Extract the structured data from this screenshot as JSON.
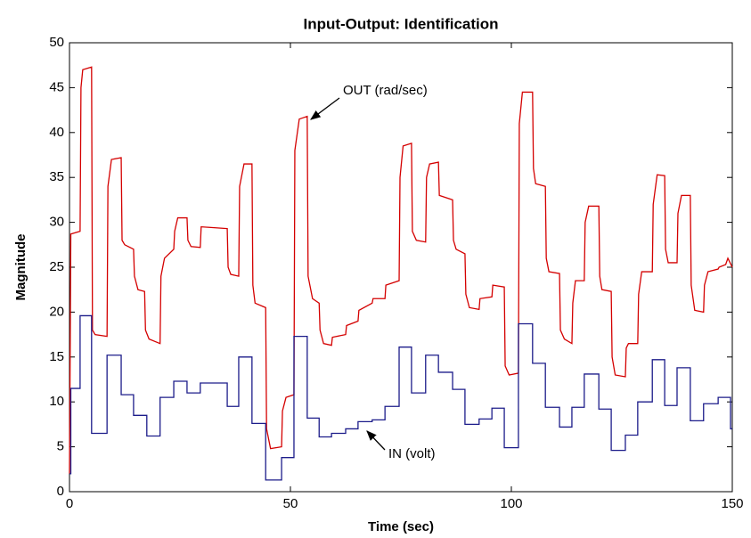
{
  "chart_data": {
    "type": "line",
    "title": "Input-Output: Identification",
    "xlabel": "Time (sec)",
    "ylabel": "Magnitude",
    "xlim": [
      0,
      150
    ],
    "xticks": [
      0,
      50,
      100,
      150
    ],
    "ylim": [
      0,
      50
    ],
    "yticks": [
      0,
      5,
      10,
      15,
      20,
      25,
      30,
      35,
      40,
      45,
      50
    ],
    "grid": false,
    "series": [
      {
        "name": "OUT (rad/sec)",
        "color": "#d40000",
        "step": false,
        "x": [
          0,
          0.3,
          2.4,
          2.6,
          3,
          5,
          5.2,
          5.8,
          8.5,
          8.7,
          9.5,
          11.7,
          11.9,
          12.5,
          14.5,
          14.7,
          15.5,
          17,
          17.2,
          18,
          20.5,
          20.7,
          21.5,
          23.6,
          23.8,
          24.5,
          26.6,
          26.8,
          27.5,
          29.6,
          29.8,
          35.7,
          35.9,
          36.5,
          38.3,
          38.5,
          39.5,
          41.3,
          41.5,
          42,
          44.4,
          44.6,
          45.5,
          48,
          48.2,
          49,
          50.8,
          51,
          52,
          53.8,
          54,
          55,
          56.5,
          56.7,
          57.5,
          59.3,
          59.5,
          62.5,
          62.7,
          65.3,
          65.5,
          68.5,
          68.7,
          71.4,
          71.6,
          74.6,
          74.8,
          75.5,
          77.4,
          77.6,
          78.5,
          80.6,
          80.8,
          81.5,
          83.5,
          83.7,
          86.7,
          86.9,
          87.5,
          89.5,
          89.7,
          90.5,
          92.7,
          92.9,
          95.6,
          95.8,
          98.4,
          98.6,
          99.5,
          101.6,
          101.8,
          102.5,
          104.8,
          105,
          105.5,
          107.7,
          107.9,
          108.5,
          110.9,
          111.1,
          112,
          113.7,
          113.9,
          114.5,
          116.5,
          116.7,
          117.5,
          119.8,
          120,
          120.5,
          122.6,
          122.8,
          123.5,
          125.8,
          126,
          126.5,
          128.6,
          128.8,
          129.5,
          131.9,
          132.1,
          133,
          134.7,
          134.9,
          135.5,
          137.5,
          137.7,
          138.5,
          140.5,
          140.7,
          141.5,
          143.5,
          143.7,
          144.5,
          146.8,
          147,
          148.5,
          149,
          150
        ],
        "values": [
          2,
          28.7,
          29,
          45,
          47,
          47.3,
          18,
          17.5,
          17.3,
          34,
          37,
          37.2,
          28,
          27.5,
          27,
          24,
          22.5,
          22.3,
          18,
          17,
          16.5,
          24,
          26,
          27,
          29,
          30.5,
          30.5,
          28,
          27.3,
          27.2,
          29.5,
          29.3,
          25,
          24.2,
          24,
          34,
          36.5,
          36.5,
          23,
          21,
          20.5,
          7,
          4.8,
          5,
          9,
          10.5,
          10.8,
          38,
          41.5,
          41.8,
          24,
          21.5,
          21,
          18,
          16.5,
          16.3,
          17.2,
          17.5,
          18.5,
          19,
          20.2,
          21,
          21.5,
          21.5,
          23,
          23.5,
          35,
          38.5,
          38.8,
          29,
          28,
          27.8,
          35,
          36.5,
          36.7,
          33,
          32.5,
          28,
          27,
          26.5,
          22,
          20.5,
          20.3,
          21.5,
          21.7,
          23,
          22.8,
          14,
          13,
          13.2,
          41,
          44.5,
          44.5,
          36,
          34.3,
          34,
          26,
          24.5,
          24.3,
          18,
          17,
          16.5,
          21,
          23.5,
          23.5,
          30,
          31.8,
          31.8,
          24,
          22.5,
          22.3,
          15,
          13,
          12.8,
          16,
          16.5,
          16.5,
          22,
          24.5,
          24.5,
          32,
          35.3,
          35.2,
          27,
          25.5,
          25.5,
          31,
          33,
          33,
          23,
          20.2,
          20,
          23,
          24.5,
          24.8,
          25,
          25.3,
          26,
          25
        ]
      },
      {
        "name": "IN (volt)",
        "color": "#1c1c8a",
        "step": true,
        "x": [
          0,
          0.3,
          2.4,
          5,
          8.5,
          11.7,
          14.5,
          17.5,
          20.5,
          23.6,
          26.6,
          29.6,
          35.7,
          38.3,
          41.3,
          44.4,
          48,
          50.8,
          53.8,
          56.5,
          59.3,
          62.5,
          65.3,
          68.5,
          71.4,
          74.6,
          77.4,
          80.6,
          83.5,
          86.7,
          89.5,
          92.7,
          95.6,
          98.4,
          101.6,
          104.8,
          107.7,
          110.9,
          113.7,
          116.5,
          119.8,
          122.6,
          125.8,
          128.6,
          131.9,
          134.7,
          137.5,
          140.5,
          143.5,
          146.8,
          149.6,
          150
        ],
        "values": [
          2,
          11.5,
          19.6,
          6.5,
          15.2,
          10.8,
          8.5,
          6.2,
          10.5,
          12.3,
          11,
          12.1,
          9.5,
          15,
          7.6,
          1.3,
          3.8,
          17.3,
          8.2,
          6.1,
          6.5,
          7,
          7.8,
          8,
          9.5,
          16.1,
          11,
          15.2,
          13.3,
          11.4,
          7.5,
          8.1,
          9.3,
          4.9,
          18.7,
          14.3,
          9.4,
          7.2,
          9.4,
          13.1,
          9.2,
          4.6,
          6.3,
          10,
          14.7,
          9.6,
          13.8,
          7.9,
          9.8,
          10.5,
          7,
          7
        ]
      }
    ]
  }
}
